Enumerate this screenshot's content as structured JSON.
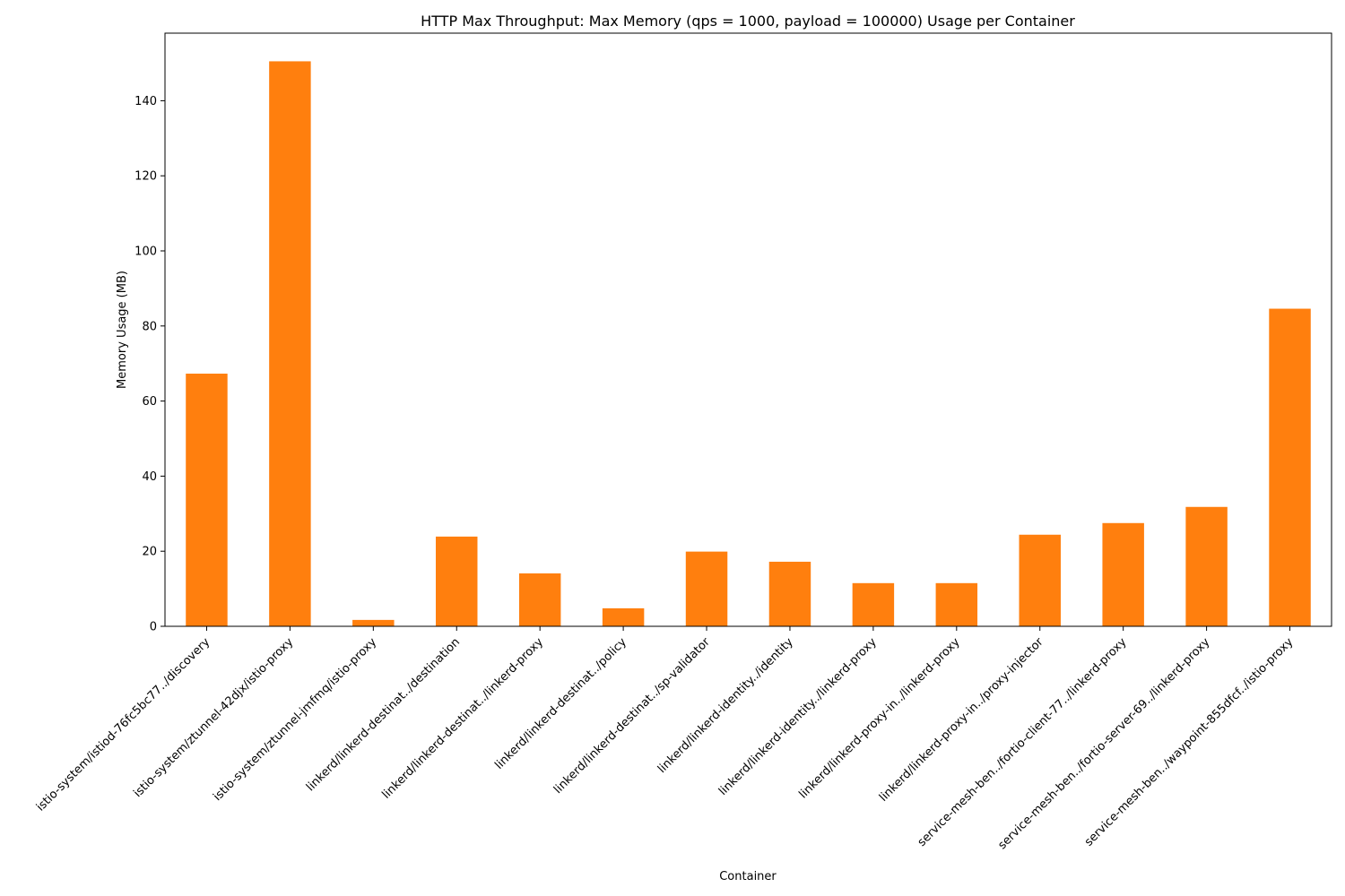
{
  "chart_data": {
    "type": "bar",
    "title": "HTTP Max Throughput: Max Memory (qps = 1000, payload = 100000) Usage per Container",
    "xlabel": "Container",
    "ylabel": "Memory Usage (MB)",
    "ylim": [
      0,
      158
    ],
    "yticks": [
      0,
      20,
      40,
      60,
      80,
      100,
      120,
      140
    ],
    "grid": false,
    "bar_color": "#ff7f0e",
    "categories": [
      "istio-system/istiod-76fc5bc77../discovery",
      "istio-system/ztunnel-42djx/istio-proxy",
      "istio-system/ztunnel-jmfmq/istio-proxy",
      "linkerd/linkerd-destinat../destination",
      "linkerd/linkerd-destinat../linkerd-proxy",
      "linkerd/linkerd-destinat../policy",
      "linkerd/linkerd-destinat../sp-validator",
      "linkerd/linkerd-identity../identity",
      "linkerd/linkerd-identity../linkerd-proxy",
      "linkerd/linkerd-proxy-in../linkerd-proxy",
      "linkerd/linkerd-proxy-in../proxy-injector",
      "service-mesh-ben../fortio-client-77../linkerd-proxy",
      "service-mesh-ben../fortio-server-69../linkerd-proxy",
      "service-mesh-ben../waypoint-855dfcf../istio-proxy"
    ],
    "values": [
      67.3,
      150.5,
      1.7,
      23.9,
      14.1,
      4.8,
      19.9,
      17.2,
      11.5,
      11.5,
      24.4,
      27.5,
      31.8,
      84.6
    ]
  }
}
